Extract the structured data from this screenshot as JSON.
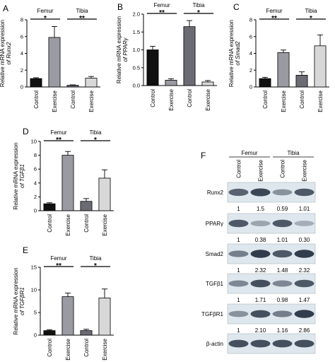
{
  "colors": {
    "control_femur": "#111111",
    "exercise_femur": "#9a9aa2",
    "control_tibia": "#6b6b73",
    "exercise_tibia": "#d8d8d8",
    "blot_background": "#dfe7ee"
  },
  "chart_data": [
    {
      "type": "bar",
      "panel": "A",
      "ylabel": "Relative mRNA expression",
      "ylabel_gene": "of Runx2",
      "ylim": [
        0,
        8
      ],
      "yticks": [
        0,
        2,
        4,
        6,
        8
      ],
      "categories": [
        "Control",
        "Exercise",
        "Control",
        "Exercise"
      ],
      "groups": [
        {
          "name": "Femur",
          "significance": "*"
        },
        {
          "name": "Tibia",
          "significance": "**"
        }
      ],
      "values": [
        1.0,
        5.9,
        0.2,
        1.05
      ],
      "errors": [
        0.1,
        1.3,
        0.05,
        0.2
      ]
    },
    {
      "type": "bar",
      "panel": "B",
      "ylabel": "Relative mRNA expression",
      "ylabel_gene": "of PPARγ",
      "ylim": [
        0,
        2.0
      ],
      "yticks": [
        0.0,
        0.5,
        1.0,
        1.5,
        2.0
      ],
      "categories": [
        "Control",
        "Exercise",
        "Control",
        "Exercise"
      ],
      "groups": [
        {
          "name": "Femur",
          "significance": "**"
        },
        {
          "name": "Tibia",
          "significance": "*"
        }
      ],
      "values": [
        1.0,
        0.15,
        1.65,
        0.1
      ],
      "errors": [
        0.1,
        0.04,
        0.17,
        0.04
      ]
    },
    {
      "type": "bar",
      "panel": "C",
      "ylabel": "Relative mRNA expression",
      "ylabel_gene": "of Smad2",
      "ylim": [
        0,
        8
      ],
      "yticks": [
        0,
        2,
        4,
        6,
        8
      ],
      "categories": [
        "Control",
        "Exercise",
        "Control",
        "Exercise"
      ],
      "groups": [
        {
          "name": "Femur",
          "significance": "**"
        },
        {
          "name": "Tibia",
          "significance": "*"
        }
      ],
      "values": [
        1.0,
        4.1,
        1.4,
        4.9
      ],
      "errors": [
        0.15,
        0.3,
        0.4,
        1.3
      ]
    },
    {
      "type": "bar",
      "panel": "D",
      "ylabel": "Relative mRNA expression",
      "ylabel_gene": "of TGFβ1",
      "ylim": [
        0,
        10
      ],
      "yticks": [
        0,
        2,
        4,
        6,
        8,
        10
      ],
      "categories": [
        "Control",
        "Exercise",
        "Control",
        "Exercise"
      ],
      "groups": [
        {
          "name": "Femur",
          "significance": "**"
        },
        {
          "name": "Tibia",
          "significance": "*"
        }
      ],
      "values": [
        1.0,
        8.0,
        1.35,
        4.7
      ],
      "errors": [
        0.15,
        0.55,
        0.4,
        1.2
      ]
    },
    {
      "type": "bar",
      "panel": "E",
      "ylabel": "Relative mRNA expression",
      "ylabel_gene": "of TGFβR1",
      "ylim": [
        0,
        15
      ],
      "yticks": [
        0,
        5,
        10,
        15
      ],
      "categories": [
        "Control",
        "Exercise",
        "Control",
        "Exercise"
      ],
      "groups": [
        {
          "name": "Femur",
          "significance": "**"
        },
        {
          "name": "Tibia",
          "significance": "*"
        }
      ],
      "values": [
        1.0,
        8.5,
        1.0,
        8.2
      ],
      "errors": [
        0.2,
        0.8,
        0.3,
        2.0
      ]
    }
  ],
  "blot": {
    "panel": "F",
    "groups": [
      "Femur",
      "Tibia"
    ],
    "lanes": [
      "Control",
      "Exercise",
      "Control",
      "Exercise"
    ],
    "rows": [
      {
        "label": "Runx2",
        "values": [
          "1",
          "1.5",
          "0.59",
          "1.01"
        ],
        "intensity": [
          0.7,
          0.85,
          0.45,
          0.75
        ]
      },
      {
        "label": "PPARγ",
        "values": [
          "1",
          "0.38",
          "1.01",
          "0.30"
        ],
        "intensity": [
          0.75,
          0.35,
          0.75,
          0.3
        ]
      },
      {
        "label": "Smad2",
        "values": [
          "1",
          "2.32",
          "1.48",
          "2.32"
        ],
        "intensity": [
          0.55,
          0.9,
          0.75,
          0.9
        ]
      },
      {
        "label": "TGFβ1",
        "values": [
          "1",
          "1.71",
          "0.98",
          "1.47"
        ],
        "intensity": [
          0.5,
          0.8,
          0.5,
          0.75
        ]
      },
      {
        "label": "TGFβR1",
        "values": [
          "1",
          "2.10",
          "1.16",
          "2.86"
        ],
        "intensity": [
          0.45,
          0.8,
          0.55,
          0.9
        ]
      },
      {
        "label": "β-actin",
        "values": [],
        "intensity": [
          0.8,
          0.8,
          0.8,
          0.8
        ]
      }
    ]
  }
}
